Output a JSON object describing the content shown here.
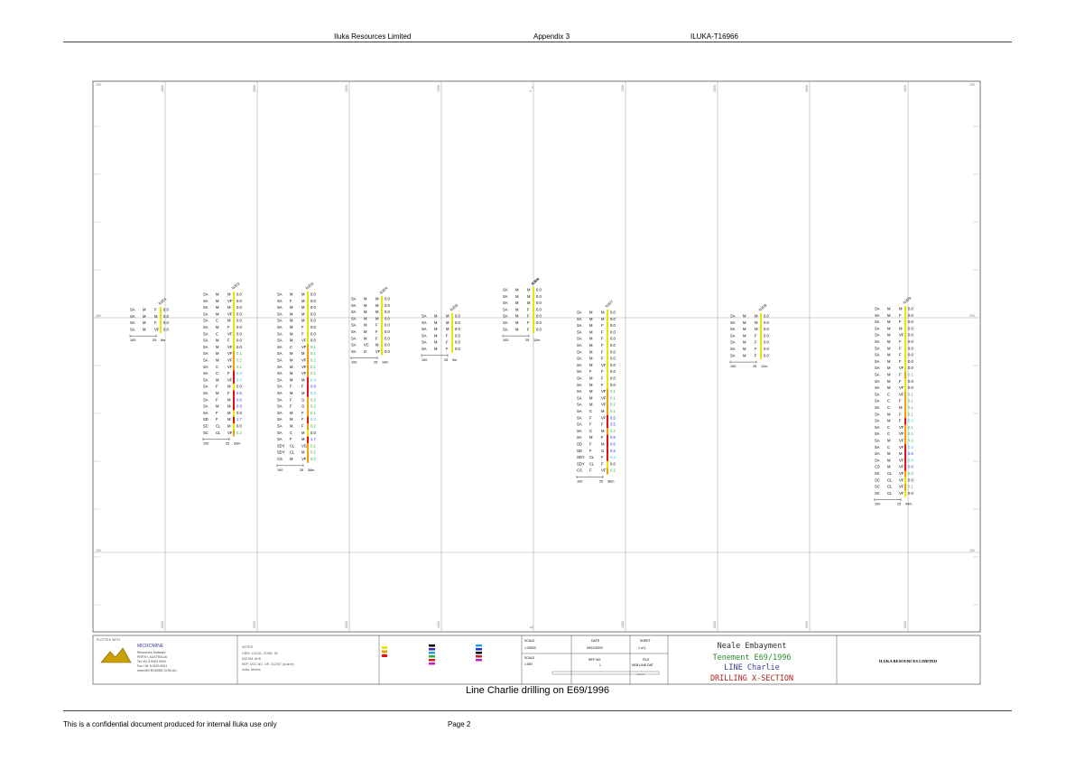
{
  "header": {
    "company": "Iluka Resources Limited",
    "appendix": "Appendix 3",
    "report_id": "ILUKA-T16966"
  },
  "caption": "Line Charlie drilling on E69/1996",
  "footer": {
    "confidentiality": "This is a confidential document produced for internal Iluka use only",
    "page": "Page 2"
  },
  "section": {
    "x_ticks_top": [
      "4000",
      "3000",
      "2000",
      "1000",
      "0",
      "1000",
      "2000",
      "3000",
      "4000"
    ],
    "x_ticks_bottom": [
      "4000",
      "3000",
      "2000",
      "1000",
      "0",
      "1000",
      "2000",
      "3000",
      "4000"
    ],
    "y_labels": [
      "300",
      "200"
    ],
    "center_mark": "0",
    "holes": [
      {
        "name": "NJD1",
        "rows": [
          [
            "SA",
            "M",
            "F",
            "0.0"
          ],
          [
            "SA",
            "M",
            "M",
            "0.0"
          ],
          [
            "SA",
            "M",
            "F",
            "0.0"
          ],
          [
            "SA",
            "M",
            "VF",
            "0.0"
          ]
        ],
        "scale": [
          "100",
          "25",
          "6m"
        ]
      },
      {
        "name": "NJD2",
        "rows": [
          [
            "SA",
            "M",
            "M",
            "0.0"
          ],
          [
            "SA",
            "M",
            "VF",
            "0.0"
          ],
          [
            "SA",
            "M",
            "M",
            "0.0"
          ],
          [
            "SA",
            "M",
            "VF",
            "0.0"
          ],
          [
            "SA",
            "C",
            "M",
            "0.0"
          ],
          [
            "SA",
            "M",
            "F",
            "0.0"
          ],
          [
            "SA",
            "C",
            "VF",
            "0.0"
          ],
          [
            "SA",
            "M",
            "F",
            "0.0"
          ],
          [
            "SA",
            "M",
            "VF",
            "0.0"
          ],
          [
            "SA",
            "M",
            "VF",
            "0.1"
          ],
          [
            "SA",
            "M",
            "VF",
            "0.2"
          ],
          [
            "SA",
            "C",
            "VF",
            "0.1"
          ],
          [
            "SA",
            "C",
            "F",
            "0.3"
          ],
          [
            "SA",
            "M",
            "VF",
            "0.3"
          ],
          [
            "SA",
            "F",
            "M",
            "0.0"
          ],
          [
            "SA",
            "M",
            "F",
            "0.5"
          ],
          [
            "SA",
            "F",
            "M",
            "0.6"
          ],
          [
            "SA",
            "M",
            "M",
            "0.8"
          ],
          [
            "SA",
            "F",
            "M",
            "0.0"
          ],
          [
            "SD",
            "F",
            "M",
            "1.7"
          ],
          [
            "SC",
            "CL",
            "M",
            "0.0"
          ],
          [
            "SC",
            "CL",
            "VF",
            "0.2"
          ]
        ],
        "scale": [
          "100",
          "25",
          "33m"
        ]
      },
      {
        "name": "NJD3",
        "rows": [
          [
            "SA",
            "M",
            "M",
            "0.0"
          ],
          [
            "SA",
            "F",
            "M",
            "0.0"
          ],
          [
            "SA",
            "M",
            "M",
            "0.0"
          ],
          [
            "SA",
            "M",
            "M",
            "0.0"
          ],
          [
            "SA",
            "M",
            "M",
            "0.0"
          ],
          [
            "SA",
            "M",
            "F",
            "0.0"
          ],
          [
            "SA",
            "M",
            "F",
            "0.0"
          ],
          [
            "SA",
            "M",
            "VF",
            "0.0"
          ],
          [
            "SA",
            "C",
            "VF",
            "0.1"
          ],
          [
            "SA",
            "M",
            "M",
            "0.1"
          ],
          [
            "SA",
            "M",
            "VF",
            "0.2"
          ],
          [
            "SA",
            "M",
            "VF",
            "0.1"
          ],
          [
            "SA",
            "M",
            "VF",
            "0.1"
          ],
          [
            "SA",
            "M",
            "M",
            "0.4"
          ],
          [
            "SA",
            "F",
            "F",
            "0.8"
          ],
          [
            "SA",
            "M",
            "M",
            "0.3"
          ],
          [
            "SA",
            "F",
            "G",
            "0.2"
          ],
          [
            "SA",
            "F",
            "G",
            "0.2"
          ],
          [
            "SA",
            "M",
            "F",
            "0.1"
          ],
          [
            "SA",
            "M",
            "F",
            "0.3"
          ],
          [
            "SA",
            "M",
            "F",
            "0.2"
          ],
          [
            "SA",
            "C",
            "M",
            "0.0"
          ],
          [
            "SA",
            "F",
            "M",
            "1.7"
          ],
          [
            "SDY",
            "CL",
            "VG",
            "0.1"
          ],
          [
            "SDY",
            "CL",
            "M",
            "0.1"
          ],
          [
            "CS",
            "M",
            "VF",
            "0.2"
          ]
        ],
        "scale": [
          "100",
          "25",
          "36m"
        ]
      },
      {
        "name": "NJD4",
        "rows": [
          [
            "SA",
            "M",
            "M",
            "0.0"
          ],
          [
            "SA",
            "M",
            "M",
            "0.0"
          ],
          [
            "SA",
            "M",
            "M",
            "0.0"
          ],
          [
            "SA",
            "M",
            "M",
            "0.0"
          ],
          [
            "SA",
            "M",
            "F",
            "0.0"
          ],
          [
            "SA",
            "M",
            "F",
            "0.0"
          ],
          [
            "SA",
            "M",
            "F",
            "0.0"
          ],
          [
            "SA",
            "VC",
            "M",
            "0.0"
          ],
          [
            "SA",
            "G",
            "VF",
            "0.0"
          ]
        ],
        "scale": [
          "100",
          "25",
          "14m"
        ]
      },
      {
        "name": "NJD5",
        "rows": [
          [
            "SA",
            "M",
            "M",
            "0.0"
          ],
          [
            "SA",
            "M",
            "M",
            "0.0"
          ],
          [
            "SA",
            "M",
            "M",
            "0.0"
          ],
          [
            "SA",
            "M",
            "F",
            "0.0"
          ],
          [
            "SA",
            "M",
            "F",
            "0.0"
          ],
          [
            "SA",
            "M",
            "F",
            "0.0"
          ]
        ],
        "scale": [
          "100",
          "25",
          "9m"
        ]
      },
      {
        "name": "NJD6",
        "rows": [
          [
            "SA",
            "M",
            "M",
            "0.0"
          ],
          [
            "SA",
            "M",
            "M",
            "0.0"
          ],
          [
            "SA",
            "M",
            "M",
            "0.0"
          ],
          [
            "SA",
            "M",
            "F",
            "0.0"
          ],
          [
            "SA",
            "M",
            "F",
            "0.0"
          ],
          [
            "SA",
            "M",
            "F",
            "0.0"
          ],
          [
            "SA",
            "M",
            "F",
            "0.0"
          ]
        ],
        "scale": [
          "100",
          "25",
          "12m"
        ]
      },
      {
        "name": "NJD7",
        "rows": [
          [
            "SA",
            "M",
            "M",
            "0.0"
          ],
          [
            "SA",
            "M",
            "M",
            "0.0"
          ],
          [
            "SA",
            "M",
            "F",
            "0.0"
          ],
          [
            "SA",
            "M",
            "F",
            "0.0"
          ],
          [
            "SA",
            "M",
            "F",
            "0.0"
          ],
          [
            "SA",
            "M",
            "F",
            "0.0"
          ],
          [
            "SA",
            "M",
            "F",
            "0.0"
          ],
          [
            "SA",
            "M",
            "F",
            "0.0"
          ],
          [
            "SA",
            "M",
            "VF",
            "0.0"
          ],
          [
            "SA",
            "F",
            "F",
            "0.0"
          ],
          [
            "SA",
            "M",
            "F",
            "0.0"
          ],
          [
            "SA",
            "M",
            "F",
            "0.0"
          ],
          [
            "SA",
            "M",
            "VF",
            "0.1"
          ],
          [
            "SA",
            "M",
            "VF",
            "0.1"
          ],
          [
            "SA",
            "M",
            "VF",
            "0.2"
          ],
          [
            "SA",
            "C",
            "M",
            "0.1"
          ],
          [
            "SA",
            "F",
            "VF",
            "0.5"
          ],
          [
            "SA",
            "F",
            "F",
            "3.5"
          ],
          [
            "SA",
            "C",
            "M",
            "0.2"
          ],
          [
            "SA",
            "M",
            "F",
            "0.6"
          ],
          [
            "SD",
            "F",
            "M",
            "0.6"
          ],
          [
            "SD",
            "F",
            "G",
            "0.6"
          ],
          [
            "SDY",
            "CL",
            "F",
            "0.4"
          ],
          [
            "SDY",
            "CL",
            "F",
            "0.0"
          ],
          [
            "CS",
            "F",
            "VF",
            "0.2"
          ]
        ],
        "scale": [
          "100",
          "25",
          "36m"
        ]
      },
      {
        "name": "NJD8",
        "rows": [
          [
            "SA",
            "M",
            "M",
            "0.0"
          ],
          [
            "SA",
            "M",
            "M",
            "0.0"
          ],
          [
            "SA",
            "M",
            "M",
            "0.0"
          ],
          [
            "SA",
            "M",
            "F",
            "0.0"
          ],
          [
            "SA",
            "M",
            "F",
            "0.0"
          ],
          [
            "SA",
            "M",
            "F",
            "0.0"
          ],
          [
            "SA",
            "M",
            "F",
            "0.0"
          ]
        ],
        "scale": [
          "100",
          "25",
          "12m"
        ]
      },
      {
        "name": "NJD9",
        "rows": [
          [
            "SA",
            "M",
            "M",
            "0.0"
          ],
          [
            "SA",
            "M",
            "F",
            "0.0"
          ],
          [
            "SA",
            "M",
            "F",
            "0.0"
          ],
          [
            "SA",
            "M",
            "M",
            "0.0"
          ],
          [
            "SA",
            "M",
            "VF",
            "0.0"
          ],
          [
            "SA",
            "M",
            "F",
            "0.0"
          ],
          [
            "SA",
            "M",
            "F",
            "0.0"
          ],
          [
            "SA",
            "M",
            "F",
            "0.0"
          ],
          [
            "SA",
            "M",
            "F",
            "0.0"
          ],
          [
            "SA",
            "M",
            "VF",
            "0.0"
          ],
          [
            "SA",
            "M",
            "F",
            "0.1"
          ],
          [
            "SA",
            "M",
            "F",
            "0.0"
          ],
          [
            "SA",
            "M",
            "VF",
            "0.0"
          ],
          [
            "SA",
            "C",
            "VF",
            "0.1"
          ],
          [
            "SA",
            "C",
            "F",
            "0.1"
          ],
          [
            "SA",
            "C",
            "M",
            "0.1"
          ],
          [
            "SA",
            "M",
            "F",
            "0.1"
          ],
          [
            "SA",
            "M",
            "F",
            "0.3"
          ],
          [
            "SA",
            "C",
            "VF",
            "0.1"
          ],
          [
            "SA",
            "C",
            "VF",
            "0.1"
          ],
          [
            "SA",
            "M",
            "VF",
            "0.2"
          ],
          [
            "SA",
            "C",
            "VF",
            "0.4"
          ],
          [
            "SA",
            "M",
            "M",
            "0.5"
          ],
          [
            "SA",
            "M",
            "VF",
            "0.4"
          ],
          [
            "CS",
            "M",
            "VF",
            "0.6"
          ],
          [
            "SC",
            "CL",
            "VF",
            "0.2"
          ],
          [
            "SC",
            "CL",
            "VF",
            "0.0"
          ],
          [
            "SC",
            "CL",
            "VF",
            "0.1"
          ],
          [
            "SC",
            "CL",
            "VF",
            "0.0"
          ]
        ],
        "scale": [
          "100",
          "25",
          "44m"
        ]
      }
    ]
  },
  "title_block": {
    "plotted_label": "PLOTTED WITH",
    "software": "MICROMINE",
    "software_lines": [
      "Resources Software",
      "PERTH, AUSTRALIA",
      "Tel +61 8 9423 9000",
      "Fax +61 8 9423 9001",
      "www.MICROMINE.COM.AU"
    ],
    "notes_label": "NOTES",
    "notes": [
      "GRID: LOCAL, ZONE: 50",
      "DATUM: AHD",
      "REF: DOC NO. OR. 312007 (source)",
      "Units: Metres"
    ],
    "scale_label": "SCALE",
    "scale": "1:25000",
    "scale2_label": "SCALE",
    "scale2": "1:500",
    "date_label": "DATE",
    "date": "05/10/2009",
    "ref_label": "REF NO.",
    "ref": "1",
    "sheet_label": "SHEET",
    "sheet": "1 of 1",
    "file_label": "FILE",
    "file": "NEB-LINE.DAT",
    "metres_label": "metres",
    "project": "Neale Embayment",
    "tenement": "Tenement E69/1996",
    "line": "LINE Charlie",
    "drawing": "DRILLING X-SECTION",
    "client": "ILUKA RESOURCES LIMITED"
  },
  "colors": {
    "hm_yellow": "#e6e600",
    "hm_orange": "#f0a000",
    "hm_red": "#e01010",
    "hm_blue": "#2030e0",
    "hm_cyan": "#20c0e0",
    "hm_green": "#30b030",
    "project_green": "#2a8a2a",
    "drawing_red": "#b02020",
    "line_blue": "#3a3a9a"
  }
}
